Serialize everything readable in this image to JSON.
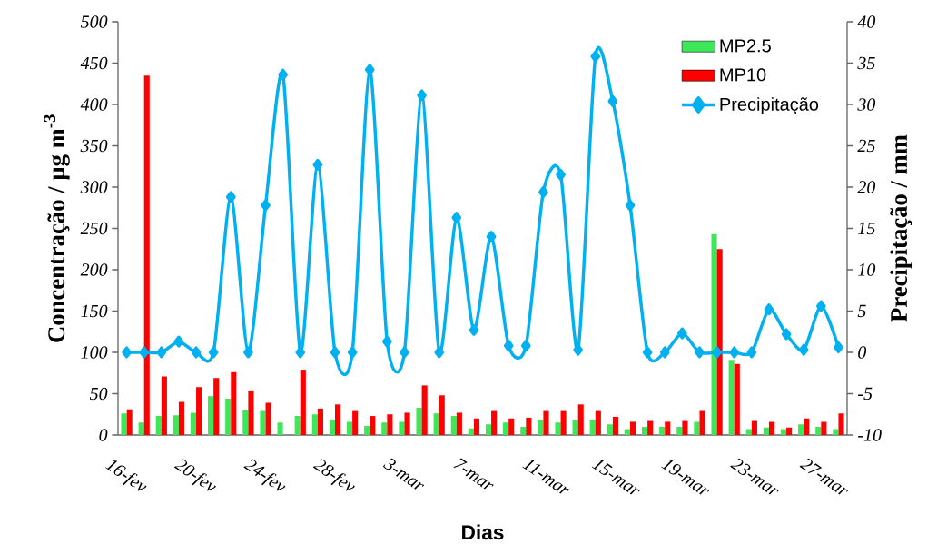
{
  "chart_data": {
    "type": "bar",
    "xlabel": "Dias",
    "ylabel": "Concentração / µg m$^{-3}$",
    "y2label": "Precipitação / mm",
    "categories": [
      "16-fev",
      null,
      null,
      null,
      "20-fev",
      null,
      null,
      null,
      "24-fev",
      null,
      null,
      null,
      "28-fev",
      null,
      null,
      null,
      "3-mar",
      null,
      null,
      null,
      "7-mar",
      null,
      null,
      null,
      "11-mar",
      null,
      null,
      null,
      "15-mar",
      null,
      null,
      null,
      "19-mar",
      null,
      null,
      null,
      "23-mar",
      null,
      null,
      null,
      "27-mar",
      null
    ],
    "series": [
      {
        "name": "MP2.5",
        "color": "#3ee65a",
        "values": [
          26,
          15,
          23,
          24,
          27,
          47,
          44,
          30,
          29,
          15,
          23,
          25,
          18,
          16,
          11,
          15,
          16,
          33,
          26,
          23,
          8,
          13,
          15,
          10,
          18,
          15,
          18,
          18,
          13,
          7,
          10,
          10,
          10,
          16,
          243,
          91,
          7,
          9,
          7,
          13,
          10,
          7
        ]
      },
      {
        "name": "MP10",
        "color": "#ff0000",
        "values": [
          31,
          435,
          71,
          40,
          58,
          69,
          76,
          54,
          39,
          null,
          79,
          32,
          37,
          29,
          23,
          25,
          27,
          60,
          48,
          27,
          20,
          29,
          20,
          21,
          29,
          29,
          37,
          29,
          22,
          16,
          17,
          16,
          17,
          29,
          225,
          86,
          17,
          16,
          9,
          20,
          16,
          26
        ]
      },
      {
        "name": "Precipitação",
        "type": "line",
        "axis": "y2",
        "color": "#00b0f0",
        "marker": "diamond",
        "values": [
          0,
          0,
          0,
          1.3,
          0,
          0,
          18.8,
          0,
          17.8,
          33.6,
          0,
          22.7,
          0,
          0,
          34.2,
          1.3,
          0,
          31.1,
          0,
          16.3,
          2.7,
          14.0,
          0.8,
          0.8,
          19.4,
          21.5,
          0.3,
          35.8,
          30.4,
          17.8,
          0,
          0,
          2.3,
          0,
          0,
          0,
          0,
          5.2,
          2.2,
          0.3,
          5.6,
          0.6
        ]
      }
    ],
    "ylim": [
      0,
      500
    ],
    "yticks": [
      0,
      50,
      100,
      150,
      200,
      250,
      300,
      350,
      400,
      450,
      500
    ],
    "y2lim": [
      -10,
      40
    ],
    "y2ticks": [
      -10,
      -5,
      0,
      5,
      10,
      15,
      20,
      25,
      30,
      35,
      40
    ],
    "legend": "top right"
  }
}
